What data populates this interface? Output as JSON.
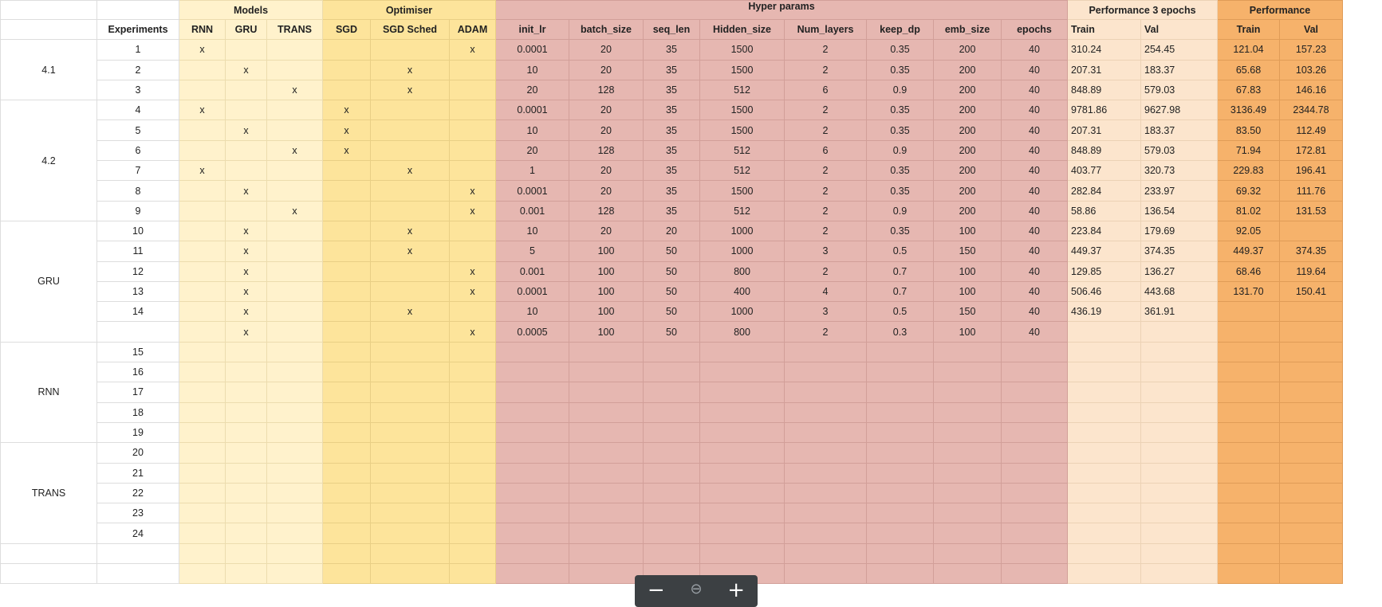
{
  "groups": {
    "models": "Models",
    "optimiser": "Optimiser",
    "hyper": "Hyper params",
    "perf3": "Performance 3 epochs",
    "perf": "Performance"
  },
  "headers": [
    "Experiments",
    "RNN",
    "GRU",
    "TRANS",
    "SGD",
    "SGD Sched",
    "ADAM",
    "init_lr",
    "batch_size",
    "seq_len",
    "Hidden_size",
    "Num_layers",
    "keep_dp",
    "emb_size",
    "epochs",
    "Train",
    "Val",
    "Train",
    "Val"
  ],
  "sections": [
    {
      "label": "4.1",
      "rows": [
        [
          "1",
          "x",
          "",
          "",
          "",
          "",
          "x",
          "0.0001",
          "20",
          "35",
          "1500",
          "2",
          "0.35",
          "200",
          "40",
          "310.24",
          "254.45",
          "121.04",
          "157.23"
        ],
        [
          "2",
          "",
          "x",
          "",
          "",
          "x",
          "",
          "10",
          "20",
          "35",
          "1500",
          "2",
          "0.35",
          "200",
          "40",
          "207.31",
          "183.37",
          "65.68",
          "103.26"
        ],
        [
          "3",
          "",
          "",
          "x",
          "",
          "x",
          "",
          "20",
          "128",
          "35",
          "512",
          "6",
          "0.9",
          "200",
          "40",
          "848.89",
          "579.03",
          "67.83",
          "146.16"
        ]
      ]
    },
    {
      "label": "4.2",
      "rows": [
        [
          "4",
          "x",
          "",
          "",
          "x",
          "",
          "",
          "0.0001",
          "20",
          "35",
          "1500",
          "2",
          "0.35",
          "200",
          "40",
          "9781.86",
          "9627.98",
          "3136.49",
          "2344.78"
        ],
        [
          "5",
          "",
          "x",
          "",
          "x",
          "",
          "",
          "10",
          "20",
          "35",
          "1500",
          "2",
          "0.35",
          "200",
          "40",
          "207.31",
          "183.37",
          "83.50",
          "112.49"
        ],
        [
          "6",
          "",
          "",
          "x",
          "x",
          "",
          "",
          "20",
          "128",
          "35",
          "512",
          "6",
          "0.9",
          "200",
          "40",
          "848.89",
          "579.03",
          "71.94",
          "172.81"
        ],
        [
          "7",
          "x",
          "",
          "",
          "",
          "x",
          "",
          "1",
          "20",
          "35",
          "512",
          "2",
          "0.35",
          "200",
          "40",
          "403.77",
          "320.73",
          "229.83",
          "196.41"
        ],
        [
          "8",
          "",
          "x",
          "",
          "",
          "",
          "x",
          "0.0001",
          "20",
          "35",
          "1500",
          "2",
          "0.35",
          "200",
          "40",
          "282.84",
          "233.97",
          "69.32",
          "111.76"
        ],
        [
          "9",
          "",
          "",
          "x",
          "",
          "",
          "x",
          "0.001",
          "128",
          "35",
          "512",
          "2",
          "0.9",
          "200",
          "40",
          "58.86",
          "136.54",
          "81.02",
          "131.53"
        ]
      ]
    },
    {
      "label": "GRU",
      "rows": [
        [
          "10",
          "",
          "x",
          "",
          "",
          "x",
          "",
          "10",
          "20",
          "20",
          "1000",
          "2",
          "0.35",
          "100",
          "40",
          "223.84",
          "179.69",
          "92.05",
          ""
        ],
        [
          "11",
          "",
          "x",
          "",
          "",
          "x",
          "",
          "5",
          "100",
          "50",
          "1000",
          "3",
          "0.5",
          "150",
          "40",
          "449.37",
          "374.35",
          "449.37",
          "374.35"
        ],
        [
          "12",
          "",
          "x",
          "",
          "",
          "",
          "x",
          "0.001",
          "100",
          "50",
          "800",
          "2",
          "0.7",
          "100",
          "40",
          "129.85",
          "136.27",
          "68.46",
          "119.64"
        ],
        [
          "13",
          "",
          "x",
          "",
          "",
          "",
          "x",
          "0.0001",
          "100",
          "50",
          "400",
          "4",
          "0.7",
          "100",
          "40",
          "506.46",
          "443.68",
          "131.70",
          "150.41"
        ],
        [
          "14",
          "",
          "x",
          "",
          "",
          "x",
          "",
          "10",
          "100",
          "50",
          "1000",
          "3",
          "0.5",
          "150",
          "40",
          "436.19",
          "361.91",
          "",
          ""
        ],
        [
          "",
          "",
          "x",
          "",
          "",
          "",
          "x",
          "0.0005",
          "100",
          "50",
          "800",
          "2",
          "0.3",
          "100",
          "40",
          "",
          "",
          "",
          ""
        ]
      ]
    },
    {
      "label": "RNN",
      "rows": [
        [
          "15",
          "",
          "",
          "",
          "",
          "",
          "",
          "",
          "",
          "",
          "",
          "",
          "",
          "",
          "",
          "",
          "",
          "",
          ""
        ],
        [
          "16",
          "",
          "",
          "",
          "",
          "",
          "",
          "",
          "",
          "",
          "",
          "",
          "",
          "",
          "",
          "",
          "",
          "",
          ""
        ],
        [
          "17",
          "",
          "",
          "",
          "",
          "",
          "",
          "",
          "",
          "",
          "",
          "",
          "",
          "",
          "",
          "",
          "",
          "",
          ""
        ],
        [
          "18",
          "",
          "",
          "",
          "",
          "",
          "",
          "",
          "",
          "",
          "",
          "",
          "",
          "",
          "",
          "",
          "",
          "",
          ""
        ],
        [
          "19",
          "",
          "",
          "",
          "",
          "",
          "",
          "",
          "",
          "",
          "",
          "",
          "",
          "",
          "",
          "",
          "",
          "",
          ""
        ]
      ]
    },
    {
      "label": "TRANS",
      "rows": [
        [
          "20",
          "",
          "",
          "",
          "",
          "",
          "",
          "",
          "",
          "",
          "",
          "",
          "",
          "",
          "",
          "",
          "",
          "",
          ""
        ],
        [
          "21",
          "",
          "",
          "",
          "",
          "",
          "",
          "",
          "",
          "",
          "",
          "",
          "",
          "",
          "",
          "",
          "",
          "",
          ""
        ],
        [
          "22",
          "",
          "",
          "",
          "",
          "",
          "",
          "",
          "",
          "",
          "",
          "",
          "",
          "",
          "",
          "",
          "",
          "",
          ""
        ],
        [
          "23",
          "",
          "",
          "",
          "",
          "",
          "",
          "",
          "",
          "",
          "",
          "",
          "",
          "",
          "",
          "",
          "",
          "",
          ""
        ],
        [
          "24",
          "",
          "",
          "",
          "",
          "",
          "",
          "",
          "",
          "",
          "",
          "",
          "",
          "",
          "",
          "",
          "",
          "",
          ""
        ]
      ]
    }
  ],
  "zoom": {
    "minus": "−",
    "reset": "⊖",
    "plus": "+"
  },
  "colors": {
    "models": "#fff2cc",
    "optimiser": "#fde49b",
    "hyper": "#e6b7b1",
    "perf3": "#fce5cd",
    "perf": "#f6b26b"
  },
  "icons": {
    "minus": "minus-icon",
    "reset": "zoom-reset-icon",
    "plus": "plus-icon"
  }
}
